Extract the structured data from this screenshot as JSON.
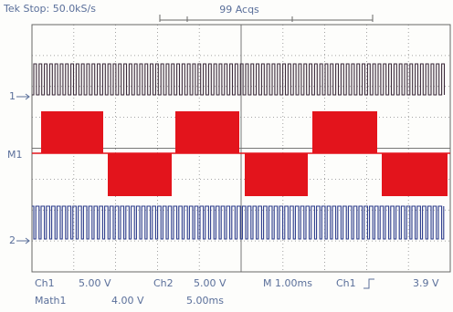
{
  "header": {
    "status": "Tek Stop: 50.0kS/s",
    "acquisitions": "99 Acqs"
  },
  "markers": {
    "ch1": "1",
    "math": "M1",
    "ch2": "2"
  },
  "footer": {
    "ch1_label": "Ch1",
    "ch1_scale": "5.00 V",
    "ch2_label": "Ch2",
    "ch2_scale": "5.00 V",
    "timebase": "M 1.00ms",
    "trigger_source": "Ch1",
    "trigger_level": "3.9 V",
    "math_label": "Math1",
    "math_scale": "4.00 V",
    "math_time": "5.00ms"
  }
}
